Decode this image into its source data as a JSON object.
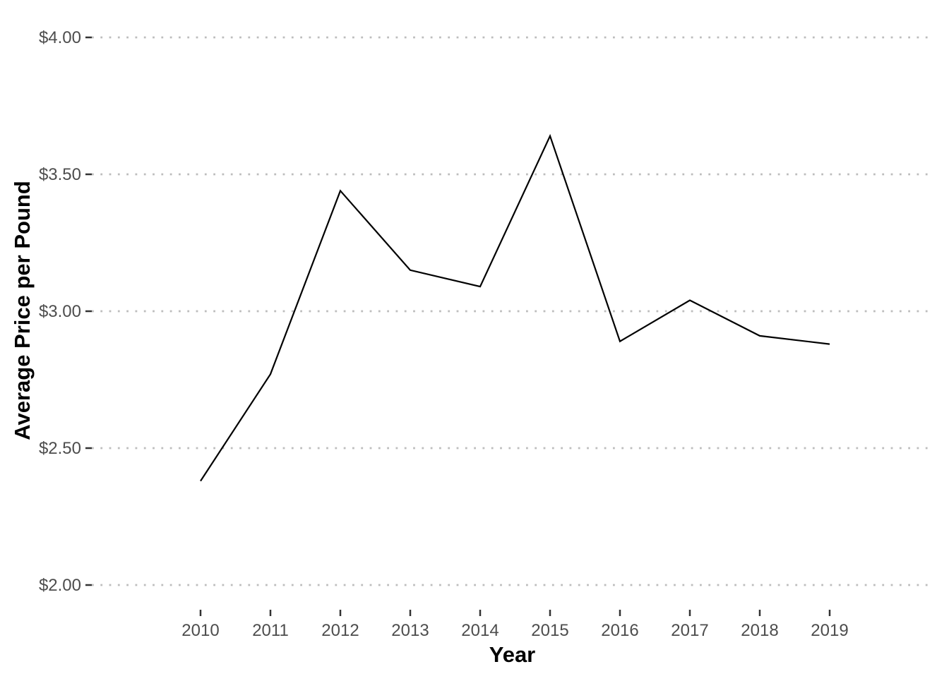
{
  "chart_data": {
    "type": "line",
    "title": "",
    "xlabel": "Year",
    "ylabel": "Average Price per Pound",
    "x": [
      2010,
      2011,
      2012,
      2013,
      2014,
      2015,
      2016,
      2017,
      2018,
      2019
    ],
    "series": [
      {
        "name": "average-price-per-pound",
        "values": [
          2.38,
          2.77,
          3.44,
          3.15,
          3.09,
          3.64,
          2.89,
          3.04,
          2.91,
          2.88
        ]
      }
    ],
    "x_tick_labels": [
      "2010",
      "2011",
      "2012",
      "2013",
      "2014",
      "2015",
      "2016",
      "2017",
      "2018",
      "2019"
    ],
    "y_ticks": [
      {
        "value": 2.0,
        "label": "$2.00"
      },
      {
        "value": 2.5,
        "label": "$2.50"
      },
      {
        "value": 3.0,
        "label": "$3.00"
      },
      {
        "value": 3.5,
        "label": "$3.50"
      },
      {
        "value": 4.0,
        "label": "$4.00"
      }
    ],
    "ylim": [
      1.9,
      4.1
    ],
    "xlim": [
      2008.45,
      2020.5
    ],
    "grid": {
      "horizontal": true,
      "vertical": false,
      "style": "dotted"
    },
    "legend": "none",
    "colors": {
      "line": "#000000",
      "grid": "#bdbdbd",
      "tick_mark": "#333333",
      "tick_label": "#4d4d4d",
      "axis_title": "#000000",
      "background": "#ffffff"
    }
  }
}
